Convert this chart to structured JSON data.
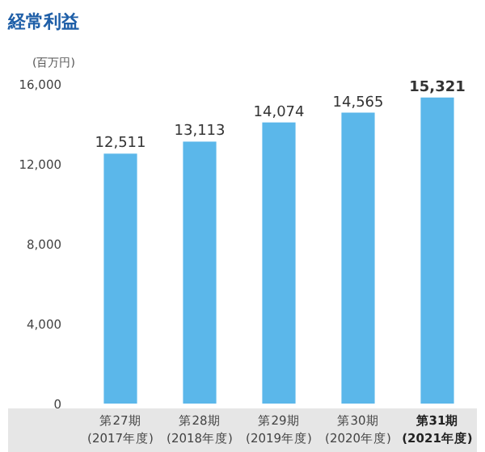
{
  "chart_data": {
    "type": "bar",
    "title": "経常利益",
    "ylabel": "(百万円)",
    "categories": [
      "第27期\n(2017年度)",
      "第28期\n(2018年度)",
      "第29期\n(2019年度)",
      "第30期\n(2020年度)",
      "**第31期**\n**(2021年度)**"
    ],
    "values": [
      12511,
      13113,
      14074,
      14565,
      15321
    ],
    "value_labels": [
      "12,511",
      "13,113",
      "14,074",
      "14,565",
      "**15,321**"
    ],
    "color": "#5bb7ea",
    "ylim": [
      0,
      16000
    ],
    "yticks": [
      0,
      {
        "value": 4000,
        "label": "4,000"
      },
      {
        "value": 8000,
        "label": "8,000"
      },
      {
        "value": 12000,
        "label": "12,000"
      },
      {
        "value": 16000,
        "label": "16,000"
      }
    ]
  }
}
